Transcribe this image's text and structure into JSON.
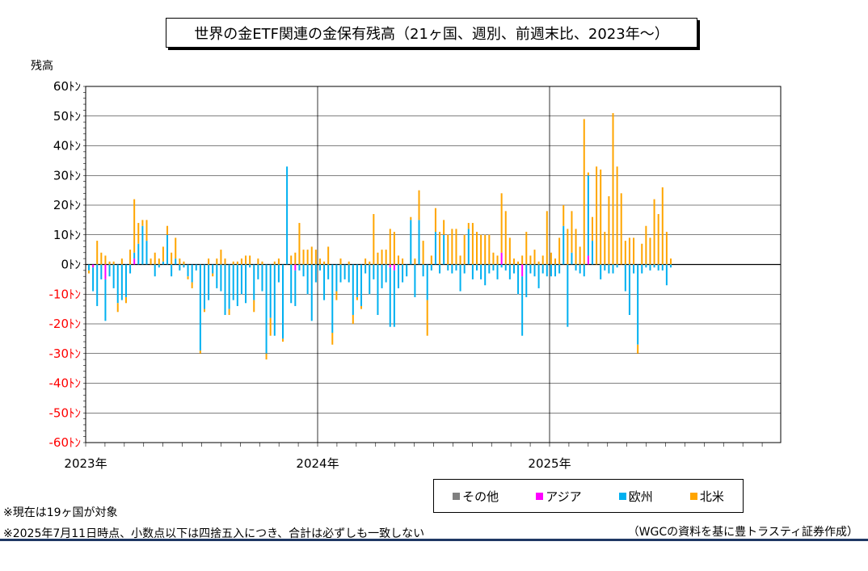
{
  "title": "世界の金ETF関連の金保有残高（21ヶ国、週別、前週末比、2023年～）",
  "notes": {
    "note1": "※現在は19ヶ国が対象",
    "note2": "※2025年7月11日時点、小数点以下は四捨五入につき、合計は必ずしも一致しない",
    "source": "（WGCの資料を基に豊トラスティ証券作成）"
  },
  "legend": [
    {
      "label": "その他",
      "color": "#808080"
    },
    {
      "label": "アジア",
      "color": "#ff00ff"
    },
    {
      "label": "欧州",
      "color": "#00b0f0"
    },
    {
      "label": "北米",
      "color": "#ffa500"
    }
  ],
  "chart_data": {
    "type": "bar",
    "stacked": true,
    "title": "世界の金ETF関連の金保有残高（21ヶ国、週別、前週末比、2023年～）",
    "ylabel": "残高",
    "xlabel": "",
    "ylim": [
      -60,
      60
    ],
    "yticks": [
      60,
      50,
      40,
      30,
      20,
      10,
      0,
      -10,
      -20,
      -30,
      -40,
      -50,
      -60
    ],
    "ytick_labels": [
      "60ﾄﾝ",
      "50ﾄﾝ",
      "40ﾄﾝ",
      "30ﾄﾝ",
      "20ﾄﾝ",
      "10ﾄﾝ",
      "0ﾄﾝ",
      "-10ﾄﾝ",
      "-20ﾄﾝ",
      "-30ﾄﾝ",
      "-40ﾄﾝ",
      "-50ﾄﾝ",
      "-60ﾄﾝ"
    ],
    "negative_tick_color": "#ff0000",
    "xtick_labels": [
      "2023年",
      "2024年",
      "2025年"
    ],
    "grid": true,
    "legend_position": "bottom-right",
    "series_names": [
      "その他",
      "アジア",
      "欧州",
      "北米"
    ],
    "series_colors": [
      "#808080",
      "#ff00ff",
      "#00b0f0",
      "#ffa500"
    ],
    "weeks": [
      [
        0,
        0,
        -2,
        -1
      ],
      [
        0,
        -1,
        -8,
        0
      ],
      [
        0,
        0,
        -14,
        8
      ],
      [
        0,
        0,
        -5,
        4
      ],
      [
        0,
        -5,
        -14,
        3
      ],
      [
        0,
        0,
        -4,
        1
      ],
      [
        0,
        0,
        -8,
        1
      ],
      [
        0,
        0,
        -13,
        -3
      ],
      [
        0,
        0,
        -12,
        2
      ],
      [
        0,
        0,
        -11,
        -2
      ],
      [
        0,
        0,
        -3,
        5
      ],
      [
        0,
        2,
        2,
        18
      ],
      [
        0,
        0,
        7,
        7
      ],
      [
        0,
        0,
        13,
        2
      ],
      [
        0,
        0,
        8,
        7
      ],
      [
        0,
        0,
        0,
        2
      ],
      [
        0,
        0,
        -4,
        4
      ],
      [
        0,
        0,
        -1,
        2
      ],
      [
        0,
        0,
        1,
        5
      ],
      [
        0,
        0,
        10,
        3
      ],
      [
        0,
        0,
        -4,
        4
      ],
      [
        0,
        0,
        2,
        7
      ],
      [
        0,
        0,
        -2,
        2
      ],
      [
        0,
        0,
        -1,
        1
      ],
      [
        0,
        0,
        -4,
        -1
      ],
      [
        0,
        0,
        -6,
        -2
      ],
      [
        0,
        0,
        -2,
        0
      ],
      [
        0,
        0,
        -29,
        -1
      ],
      [
        0,
        0,
        -15,
        -1
      ],
      [
        0,
        0,
        -12,
        2
      ],
      [
        0,
        0,
        -3,
        -1
      ],
      [
        0,
        0,
        -8,
        2
      ],
      [
        0,
        0,
        -9,
        5
      ],
      [
        0,
        0,
        -17,
        2
      ],
      [
        0,
        0,
        -15,
        -2
      ],
      [
        0,
        0,
        -12,
        1
      ],
      [
        0,
        0,
        -14,
        1
      ],
      [
        0,
        0,
        -10,
        2
      ],
      [
        0,
        0,
        -13,
        3
      ],
      [
        0,
        0,
        -1,
        3
      ],
      [
        0,
        0,
        -12,
        -4
      ],
      [
        0,
        0,
        -5,
        2
      ],
      [
        0,
        0,
        -9,
        1
      ],
      [
        0,
        0,
        -30,
        -2
      ],
      [
        0,
        0,
        -18,
        -6
      ],
      [
        0,
        0,
        -24,
        1
      ],
      [
        0,
        0,
        -6,
        2
      ],
      [
        0,
        0,
        -25,
        -1
      ],
      [
        0,
        0,
        33,
        0
      ],
      [
        0,
        0,
        -13,
        3
      ],
      [
        0,
        -2,
        -12,
        4
      ],
      [
        0,
        0,
        -2,
        14
      ],
      [
        0,
        0,
        -4,
        5
      ],
      [
        0,
        0,
        -10,
        5
      ],
      [
        0,
        0,
        -19,
        6
      ],
      [
        0,
        0,
        -6,
        5
      ],
      [
        0,
        0,
        -2,
        2
      ],
      [
        0,
        0,
        -12,
        1
      ],
      [
        0,
        0,
        -5,
        6
      ],
      [
        0,
        0,
        -23,
        -4
      ],
      [
        0,
        0,
        -9,
        -3
      ],
      [
        0,
        0,
        -6,
        2
      ],
      [
        0,
        0,
        -5,
        0
      ],
      [
        0,
        0,
        -6,
        1
      ],
      [
        0,
        0,
        -17,
        -3
      ],
      [
        0,
        0,
        -11,
        -1
      ],
      [
        0,
        0,
        -14,
        -1
      ],
      [
        0,
        0,
        -3,
        2
      ],
      [
        0,
        0,
        -10,
        1
      ],
      [
        0,
        0,
        -5,
        17
      ],
      [
        0,
        0,
        -17,
        4
      ],
      [
        0,
        0,
        -8,
        5
      ],
      [
        0,
        0,
        -6,
        5
      ],
      [
        0,
        -1,
        -20,
        12
      ],
      [
        0,
        -2,
        -19,
        11
      ],
      [
        0,
        0,
        -8,
        3
      ],
      [
        0,
        0,
        -6,
        2
      ],
      [
        0,
        0,
        -4,
        0
      ],
      [
        0,
        0,
        15,
        1
      ],
      [
        0,
        0,
        -11,
        2
      ],
      [
        0,
        0,
        15,
        10
      ],
      [
        0,
        0,
        -4,
        8
      ],
      [
        0,
        0,
        -12,
        -12
      ],
      [
        0,
        0,
        -2,
        3
      ],
      [
        0,
        0,
        11,
        8
      ],
      [
        0,
        0,
        -3,
        11
      ],
      [
        0,
        0,
        10,
        5
      ],
      [
        0,
        0,
        -2,
        10
      ],
      [
        0,
        0,
        -3,
        12
      ],
      [
        0,
        0,
        -2,
        12
      ],
      [
        0,
        0,
        -9,
        3
      ],
      [
        0,
        0,
        -3,
        10
      ],
      [
        0,
        0,
        12,
        2
      ],
      [
        0,
        0,
        -5,
        14
      ],
      [
        0,
        0,
        -2,
        11
      ],
      [
        0,
        0,
        -5,
        10
      ],
      [
        0,
        0,
        -7,
        10
      ],
      [
        0,
        0,
        -3,
        10
      ],
      [
        0,
        0,
        -2,
        4
      ],
      [
        0,
        0,
        -5,
        3
      ],
      [
        0,
        4,
        -1,
        20
      ],
      [
        0,
        0,
        -2,
        18
      ],
      [
        0,
        0,
        -5,
        9
      ],
      [
        0,
        0,
        -3,
        2
      ],
      [
        0,
        0,
        -10,
        1
      ],
      [
        0,
        -4,
        -20,
        3
      ],
      [
        0,
        0,
        -11,
        11
      ],
      [
        0,
        0,
        -3,
        3
      ],
      [
        0,
        0,
        -4,
        5
      ],
      [
        0,
        0,
        -8,
        1
      ],
      [
        0,
        0,
        -3,
        3
      ],
      [
        0,
        0,
        -4,
        18
      ],
      [
        0,
        0,
        -4,
        4
      ],
      [
        0,
        0,
        -4,
        2
      ],
      [
        0,
        0,
        -3,
        9
      ],
      [
        0,
        0,
        13,
        7
      ],
      [
        0,
        0,
        -21,
        12
      ],
      [
        0,
        0,
        4,
        14
      ],
      [
        0,
        0,
        -2,
        12
      ],
      [
        0,
        0,
        -3,
        6
      ],
      [
        0,
        0,
        -4,
        49
      ],
      [
        0,
        3,
        27,
        1
      ],
      [
        0,
        0,
        8,
        8
      ],
      [
        0,
        0,
        0,
        33
      ],
      [
        0,
        0,
        -5,
        32
      ],
      [
        0,
        0,
        -2,
        11
      ],
      [
        0,
        0,
        -3,
        23
      ],
      [
        0,
        0,
        -3,
        51
      ],
      [
        0,
        0,
        -1,
        33
      ],
      [
        0,
        0,
        0,
        24
      ],
      [
        0,
        0,
        -9,
        8
      ],
      [
        0,
        0,
        -17,
        9
      ],
      [
        0,
        0,
        -3,
        9
      ],
      [
        0,
        0,
        -27,
        -3
      ],
      [
        0,
        0,
        -3,
        7
      ],
      [
        0,
        0,
        -1,
        13
      ],
      [
        0,
        0,
        -2,
        9
      ],
      [
        0,
        0,
        -1,
        22
      ],
      [
        0,
        0,
        -2,
        17
      ],
      [
        0,
        0,
        -2,
        26
      ],
      [
        0,
        0,
        -7,
        11
      ],
      [
        0,
        0,
        -1,
        2
      ]
    ],
    "weeks_note": "each entry is [その他, アジア, 欧州, 北米] weekly change in tonnes"
  }
}
